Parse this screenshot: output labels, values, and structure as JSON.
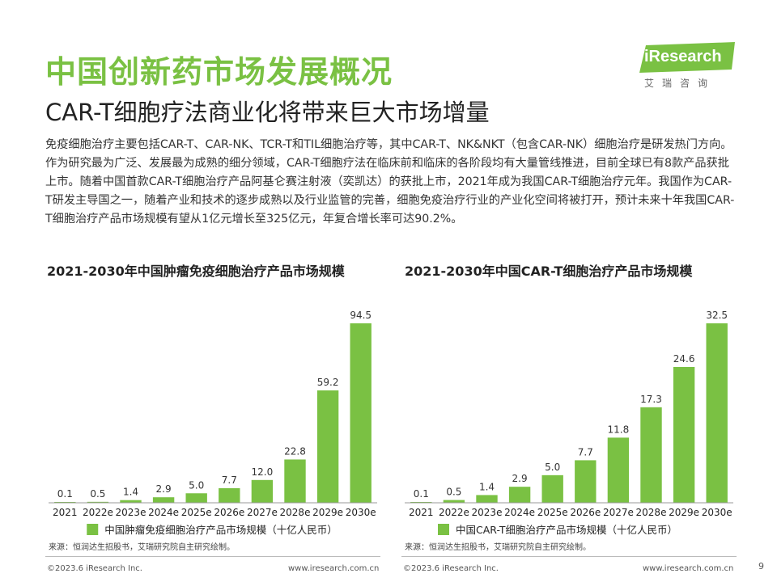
{
  "title": "中国创新药市场发展概况",
  "subtitle": "CAR-T细胞疗法商业化将带来巨大市场增量",
  "logo": {
    "brand": "iResearch",
    "tagline": "艾瑞咨询"
  },
  "intro": "免疫细胞治疗主要包括CAR-T、CAR-NK、TCR-T和TIL细胞治疗等，其中CAR-T、NK&NKT（包含CAR-NK）细胞治疗是研发热门方向。作为研究最为广泛、发展最为成熟的细分领域，CAR-T细胞疗法在临床前和临床的各阶段均有大量管线推进，目前全球已有8款产品获批上市。随着中国首款CAR-T细胞治疗产品阿基仑赛注射液（奕凯达）的获批上市，2021年成为我国CAR-T细胞治疗元年。我国作为CAR-T研发主导国之一，随着产业和技术的逐步成熟以及行业监管的完善，细胞免疫治疗行业的产业化空间将被打开，预计未来十年我国CAR-T细胞治疗产品市场规模有望从1亿元增长至325亿元，年复合增长率可达90.2%。",
  "colors": {
    "accent": "#7ac143",
    "bar": "#7ac143",
    "text": "#333333"
  },
  "chart_data": [
    {
      "type": "bar",
      "title": "2021-2030年中国肿瘤免疫细胞治疗产品市场规模",
      "categories": [
        "2021",
        "2022e",
        "2023e",
        "2024e",
        "2025e",
        "2026e",
        "2027e",
        "2028e",
        "2029e",
        "2030e"
      ],
      "series": [
        {
          "name": "中国肿瘤免疫细胞治疗产品市场规模（十亿人民币）",
          "values": [
            0.1,
            0.5,
            1.4,
            2.9,
            5.0,
            7.7,
            12.0,
            22.8,
            59.2,
            94.5
          ]
        }
      ],
      "value_labels": [
        "0.1",
        "0.5",
        "1.4",
        "2.9",
        "5.0",
        "7.7",
        "12.0",
        "22.8",
        "59.2",
        "94.5"
      ],
      "ylim": [
        0,
        94.5
      ],
      "grid": false,
      "legend_position": "bottom"
    },
    {
      "type": "bar",
      "title": "2021-2030年中国CAR-T细胞治疗产品市场规模",
      "categories": [
        "2021",
        "2022e",
        "2023e",
        "2024e",
        "2025e",
        "2026e",
        "2027e",
        "2028e",
        "2029e",
        "2030e"
      ],
      "series": [
        {
          "name": "中国CAR-T细胞治疗产品市场规模（十亿人民币）",
          "values": [
            0.1,
            0.5,
            1.4,
            2.9,
            5.0,
            7.7,
            11.8,
            17.3,
            24.6,
            32.5
          ]
        }
      ],
      "value_labels": [
        "0.1",
        "0.5",
        "1.4",
        "2.9",
        "5.0",
        "7.7",
        "11.8",
        "17.3",
        "24.6",
        "32.5"
      ],
      "ylim": [
        0,
        32.5
      ],
      "grid": false,
      "legend_position": "bottom"
    }
  ],
  "sources": [
    "来源：恒润达生招股书，艾瑞研究院自主研究绘制。",
    "来源：恒润达生招股书，艾瑞研究院自主研究绘制。"
  ],
  "footer": {
    "left_copyright": "©2023.6 iResearch Inc.",
    "left_url": "www.iresearch.com.cn",
    "right_copyright": "©2023.6 iResearch Inc.",
    "right_url": "www.iresearch.com.cn",
    "page": "9"
  }
}
